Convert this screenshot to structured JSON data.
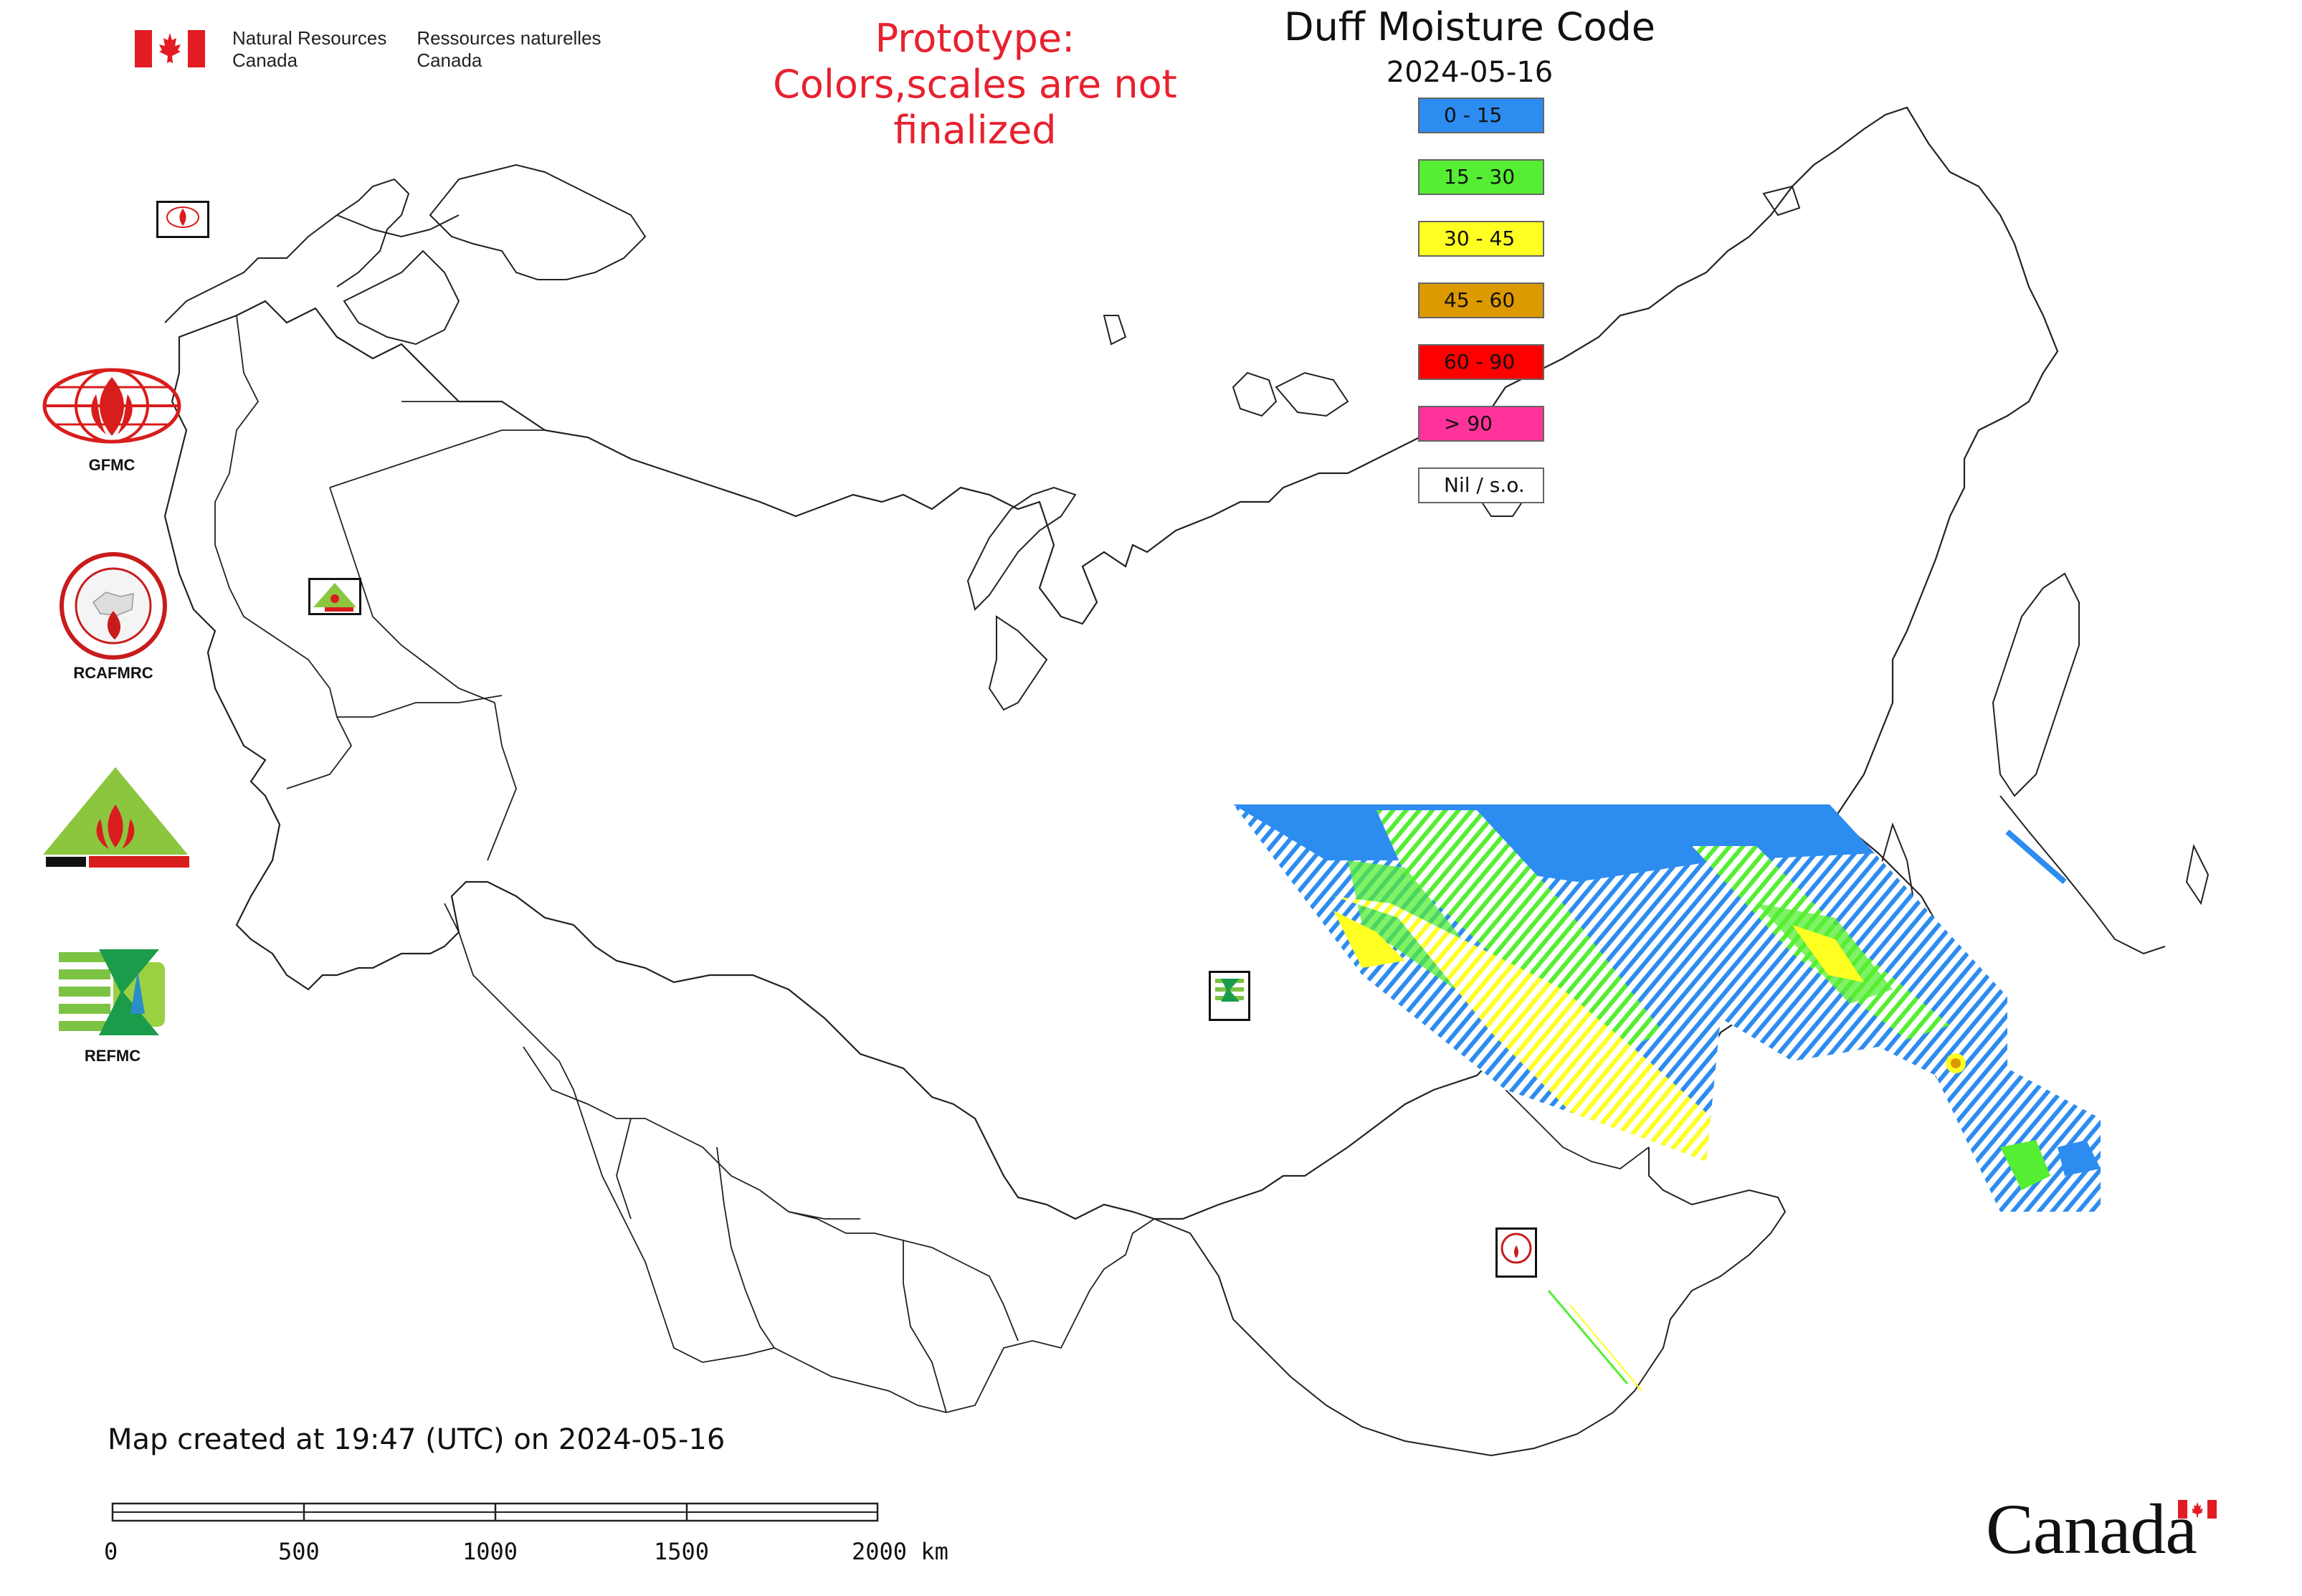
{
  "header": {
    "dept_en": [
      "Natural Resources",
      "Canada"
    ],
    "dept_fr": [
      "Ressources naturelles",
      "Canada"
    ],
    "prototype_line1": "Prototype:",
    "prototype_line2": "Colors,scales are not finalized",
    "title": "Duff Moisture Code",
    "date": "2024-05-16"
  },
  "legend": [
    {
      "label": "0 - 15",
      "color": "#2d8cf0"
    },
    {
      "label": "15 - 30",
      "color": "#55ee33"
    },
    {
      "label": "30 - 45",
      "color": "#ffff22"
    },
    {
      "label": "45 - 60",
      "color": "#dd9900"
    },
    {
      "label": "60 - 90",
      "color": "#ff0000"
    },
    {
      "label": "> 90",
      "color": "#ff3399"
    },
    {
      "label": "Nil / s.o.",
      "color": "#ffffff"
    }
  ],
  "side_logos": [
    {
      "label": "GFMC",
      "icon": "gfmc-globe-flame-icon"
    },
    {
      "label": "RCAFMRC",
      "icon": "rcafmrc-seal-icon"
    },
    {
      "label": "",
      "icon": "reefmc-triangle-icon"
    },
    {
      "label": "REFMC",
      "icon": "refmc-sigma-icon"
    }
  ],
  "footer": {
    "created": "Map created at 19:47 (UTC) on 2024-05-16",
    "scale_labels": [
      "0",
      "500",
      "1000",
      "1500",
      "2000 km"
    ],
    "wordmark": "Canada"
  }
}
